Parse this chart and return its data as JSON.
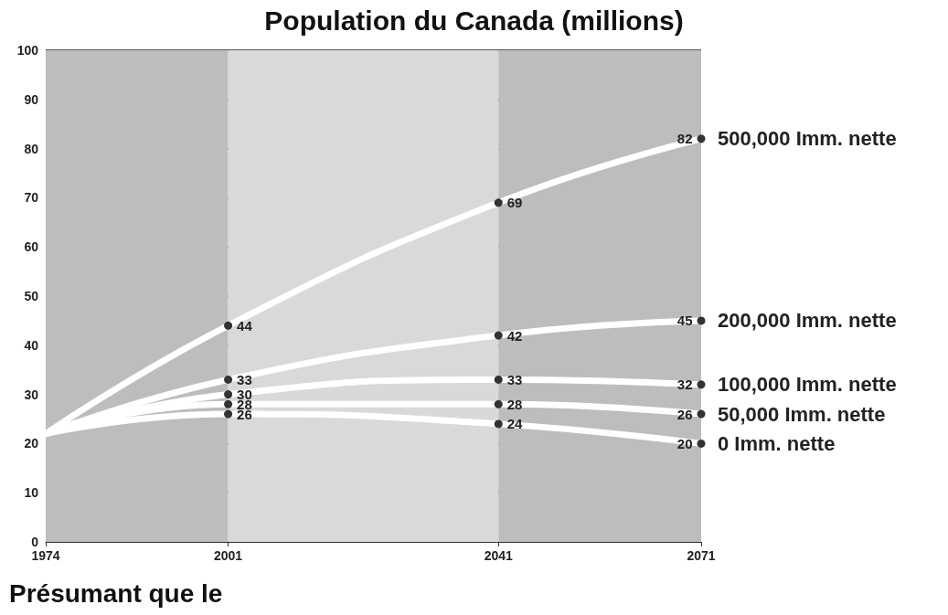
{
  "chart_data": {
    "type": "line",
    "title": "Population du Canada (millions)",
    "x": [
      1974,
      2001,
      2041,
      2071
    ],
    "xlim": [
      1974,
      2071
    ],
    "xticks": [
      1974,
      2001,
      2041,
      2071
    ],
    "ylim": [
      0,
      100
    ],
    "yticks": [
      0,
      10,
      20,
      30,
      40,
      50,
      60,
      70,
      80,
      90,
      100
    ],
    "grid": "y",
    "legend": false,
    "marker": "circle",
    "line_style": "solid",
    "bands": [
      {
        "axis": "x",
        "from": 1974,
        "to": 2001,
        "color": "#bdbdbd"
      },
      {
        "axis": "x",
        "from": 2001,
        "to": 2041,
        "color": "#d9d9d9"
      },
      {
        "axis": "x",
        "from": 2041,
        "to": 2071,
        "color": "#bdbdbd"
      }
    ],
    "series": [
      {
        "name": "500,000 Imm. nette",
        "color": "#ffffff",
        "values": [
          22,
          44,
          69,
          82
        ],
        "value_labels": [
          null,
          "44",
          "69",
          "82"
        ]
      },
      {
        "name": "200,000 Imm. nette",
        "color": "#ffffff",
        "values": [
          22,
          33,
          42,
          45
        ],
        "value_labels": [
          null,
          "33",
          "42",
          "45"
        ]
      },
      {
        "name": "100,000 Imm. nette",
        "color": "#ffffff",
        "values": [
          22,
          30,
          33,
          32
        ],
        "value_labels": [
          null,
          "30",
          "33",
          "32"
        ]
      },
      {
        "name": "50,000 Imm. nette",
        "color": "#ffffff",
        "values": [
          22,
          28,
          28,
          26
        ],
        "value_labels": [
          null,
          "28",
          "28",
          "26"
        ]
      },
      {
        "name": "0 Imm. nette",
        "color": "#ffffff",
        "values": [
          22,
          26,
          24,
          20
        ],
        "value_labels": [
          null,
          "26",
          "24",
          "20"
        ]
      }
    ],
    "annotations": [
      "Présumant que le"
    ]
  }
}
